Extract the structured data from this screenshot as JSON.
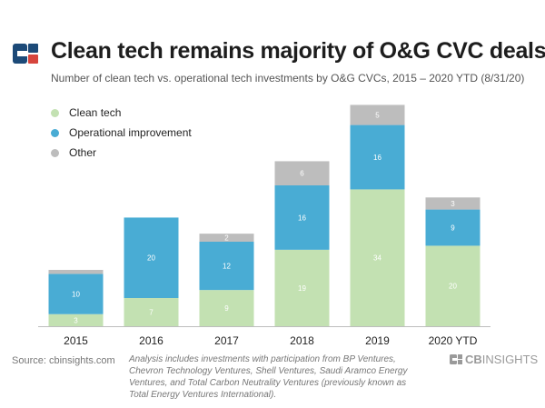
{
  "header": {
    "title": "Clean tech remains majority of O&G CVC deals",
    "subtitle": "Number of clean tech vs. operational tech investments by O&G CVCs, 2015 – 2020 YTD (8/31/20)"
  },
  "colors": {
    "clean": "#c3e1b2",
    "operational": "#49acd4",
    "other": "#bdbdbd",
    "logo_blue": "#1c4a78",
    "logo_red": "#d6453d"
  },
  "legend": [
    {
      "label": "Clean tech",
      "color": "#c3e1b2"
    },
    {
      "label": "Operational improvement",
      "color": "#49acd4"
    },
    {
      "label": "Other",
      "color": "#bdbdbd"
    }
  ],
  "chart_data": {
    "type": "bar",
    "stacked": true,
    "title": "Clean tech remains majority of O&G CVC deals",
    "categories": [
      "2015",
      "2016",
      "2017",
      "2018",
      "2019",
      "2020 YTD"
    ],
    "series": [
      {
        "name": "Clean tech",
        "values": [
          3,
          7,
          9,
          19,
          34,
          20
        ]
      },
      {
        "name": "Operational improvement",
        "values": [
          10,
          20,
          12,
          16,
          16,
          9
        ]
      },
      {
        "name": "Other",
        "values": [
          1,
          0,
          2,
          6,
          5,
          3
        ]
      }
    ],
    "ylim": [
      0,
      56
    ],
    "grid": false,
    "legend_position": "top-left"
  },
  "footer": {
    "source": "Source: cbinsights.com",
    "note": "Analysis includes investments with participation from BP Ventures, Chevron Technology Ventures, Shell Ventures, Saudi Aramco Energy Ventures, and Total Carbon Neutrality Ventures (previously known as Total Energy Ventures International).",
    "brand_cb": "CB",
    "brand_insights": "INSIGHTS"
  }
}
